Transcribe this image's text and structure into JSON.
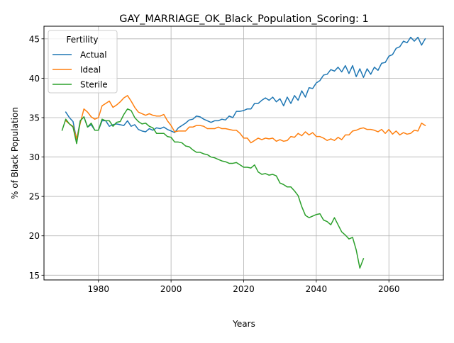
{
  "chart_data": {
    "type": "line",
    "title": "GAY_MARRIAGE_OK_Black_Population_Scoring: 1",
    "xlabel": "Years",
    "ylabel": "% of Black Population",
    "xlim": [
      1965,
      2075
    ],
    "ylim": [
      14.4,
      46.6
    ],
    "xticks": [
      1980,
      2000,
      2020,
      2040,
      2060
    ],
    "yticks": [
      15,
      20,
      25,
      30,
      35,
      40,
      45
    ],
    "grid": true,
    "legend": {
      "title": "Fertility",
      "placement": "upper-left"
    },
    "series": [
      {
        "name": "Actual",
        "color": "#1f77b4",
        "x": [
          1971,
          1972,
          1973,
          1974,
          1975,
          1976,
          1977,
          1978,
          1979,
          1980,
          1981,
          1982,
          1983,
          1984,
          1985,
          1986,
          1987,
          1988,
          1989,
          1990,
          1991,
          1992,
          1993,
          1994,
          1995,
          1996,
          1997,
          1998,
          1999,
          2000,
          2001,
          2002,
          2003,
          2004,
          2005,
          2006,
          2007,
          2008,
          2009,
          2010,
          2011,
          2012,
          2013,
          2014,
          2015,
          2016,
          2017,
          2018,
          2019,
          2020,
          2021,
          2022,
          2023,
          2024,
          2025,
          2026,
          2027,
          2028,
          2029,
          2030,
          2031,
          2032,
          2033,
          2034,
          2035,
          2036,
          2037,
          2038,
          2039,
          2040,
          2041,
          2042,
          2043,
          2044,
          2045,
          2046,
          2047,
          2048,
          2049,
          2050,
          2051,
          2052,
          2053,
          2054,
          2055,
          2056,
          2057,
          2058,
          2059,
          2060,
          2061,
          2062,
          2063,
          2064,
          2065,
          2066,
          2067,
          2068,
          2069,
          2070
        ],
        "y": [
          35.7,
          35.0,
          34.5,
          32.2,
          34.6,
          35.1,
          33.8,
          34.1,
          33.4,
          33.4,
          34.6,
          34.6,
          33.9,
          34.1,
          34.2,
          34.1,
          34.0,
          34.6,
          33.9,
          34.1,
          33.5,
          33.3,
          33.2,
          33.6,
          33.4,
          33.7,
          33.6,
          33.8,
          33.5,
          33.3,
          33.1,
          33.7,
          34.0,
          34.3,
          34.7,
          34.8,
          35.2,
          35.1,
          34.8,
          34.6,
          34.4,
          34.6,
          34.6,
          34.8,
          34.7,
          35.2,
          35.0,
          35.8,
          35.8,
          35.9,
          36.1,
          36.1,
          36.8,
          36.8,
          37.2,
          37.5,
          37.2,
          37.6,
          37.0,
          37.4,
          36.5,
          37.6,
          36.8,
          37.8,
          37.2,
          38.4,
          37.6,
          38.8,
          38.7,
          39.4,
          39.7,
          40.4,
          40.5,
          41.1,
          40.9,
          41.4,
          40.8,
          41.6,
          40.6,
          41.6,
          40.2,
          41.2,
          40.1,
          41.2,
          40.5,
          41.4,
          41.0,
          41.9,
          42.0,
          42.8,
          43.0,
          43.8,
          44.0,
          44.7,
          44.5,
          45.2,
          44.7,
          45.2,
          44.2,
          45.0
        ]
      },
      {
        "name": "Ideal",
        "color": "#ff7f0e",
        "x": [
          1971,
          1972,
          1973,
          1974,
          1975,
          1976,
          1977,
          1978,
          1979,
          1980,
          1981,
          1982,
          1983,
          1984,
          1985,
          1986,
          1987,
          1988,
          1989,
          1990,
          1991,
          1992,
          1993,
          1994,
          1995,
          1996,
          1997,
          1998,
          1999,
          2000,
          2001,
          2002,
          2003,
          2004,
          2005,
          2006,
          2007,
          2008,
          2009,
          2010,
          2011,
          2012,
          2013,
          2014,
          2015,
          2016,
          2017,
          2018,
          2019,
          2020,
          2021,
          2022,
          2023,
          2024,
          2025,
          2026,
          2027,
          2028,
          2029,
          2030,
          2031,
          2032,
          2033,
          2034,
          2035,
          2036,
          2037,
          2038,
          2039,
          2040,
          2041,
          2042,
          2043,
          2044,
          2045,
          2046,
          2047,
          2048,
          2049,
          2050,
          2051,
          2052,
          2053,
          2054,
          2055,
          2056,
          2057,
          2058,
          2059,
          2060,
          2061,
          2062,
          2063,
          2064,
          2065,
          2066,
          2067,
          2068,
          2069,
          2070
        ],
        "y": [
          34.6,
          34.2,
          33.9,
          32.3,
          34.3,
          36.1,
          35.7,
          35.1,
          34.8,
          35.0,
          36.5,
          36.8,
          37.1,
          36.3,
          36.6,
          37.0,
          37.5,
          37.8,
          37.1,
          36.3,
          35.7,
          35.5,
          35.3,
          35.5,
          35.3,
          35.2,
          35.2,
          35.4,
          34.6,
          34.0,
          33.2,
          33.3,
          33.3,
          33.3,
          33.8,
          33.8,
          34.0,
          34.0,
          33.9,
          33.6,
          33.6,
          33.6,
          33.8,
          33.6,
          33.6,
          33.5,
          33.4,
          33.4,
          33.0,
          32.4,
          32.4,
          31.8,
          32.1,
          32.4,
          32.2,
          32.4,
          32.3,
          32.4,
          32.0,
          32.2,
          32.0,
          32.1,
          32.6,
          32.5,
          33.0,
          32.7,
          33.2,
          32.8,
          33.1,
          32.6,
          32.6,
          32.4,
          32.1,
          32.3,
          32.1,
          32.5,
          32.2,
          32.8,
          32.8,
          33.3,
          33.4,
          33.6,
          33.7,
          33.5,
          33.5,
          33.4,
          33.2,
          33.5,
          33.0,
          33.5,
          32.9,
          33.3,
          32.8,
          33.1,
          32.9,
          33.0,
          33.4,
          33.3,
          34.3,
          34.0
        ]
      },
      {
        "name": "Sterile",
        "color": "#2ca02c",
        "x": [
          1970,
          1971,
          1972,
          1973,
          1974,
          1975,
          1976,
          1977,
          1978,
          1979,
          1980,
          1981,
          1982,
          1983,
          1984,
          1985,
          1986,
          1987,
          1988,
          1989,
          1990,
          1991,
          1992,
          1993,
          1994,
          1995,
          1996,
          1997,
          1998,
          1999,
          2000,
          2001,
          2002,
          2003,
          2004,
          2005,
          2006,
          2007,
          2008,
          2009,
          2010,
          2011,
          2012,
          2013,
          2014,
          2015,
          2016,
          2017,
          2018,
          2019,
          2020,
          2021,
          2022,
          2023,
          2024,
          2025,
          2026,
          2027,
          2028,
          2029,
          2030,
          2031,
          2032,
          2033,
          2034,
          2035,
          2036,
          2037,
          2038,
          2039,
          2040,
          2041,
          2042,
          2043,
          2044,
          2045,
          2046,
          2047,
          2048,
          2049,
          2050,
          2051,
          2052,
          2053
        ],
        "y": [
          33.4,
          34.8,
          34.2,
          33.8,
          31.7,
          34.6,
          35.1,
          33.8,
          34.3,
          33.4,
          33.4,
          34.8,
          34.6,
          34.6,
          33.9,
          34.4,
          34.5,
          35.4,
          36.1,
          35.9,
          35.0,
          34.5,
          34.2,
          34.3,
          33.9,
          33.7,
          33.0,
          33.0,
          33.0,
          32.6,
          32.5,
          31.9,
          31.9,
          31.8,
          31.4,
          31.3,
          30.9,
          30.6,
          30.6,
          30.4,
          30.3,
          30.0,
          29.9,
          29.7,
          29.5,
          29.4,
          29.2,
          29.2,
          29.3,
          29.0,
          28.7,
          28.7,
          28.6,
          29.0,
          28.1,
          27.8,
          27.9,
          27.7,
          27.8,
          27.6,
          26.7,
          26.5,
          26.2,
          26.2,
          25.7,
          25.1,
          23.7,
          22.6,
          22.3,
          22.5,
          22.7,
          22.8,
          22.0,
          21.8,
          21.4,
          22.3,
          21.4,
          20.5,
          20.1,
          19.6,
          19.8,
          18.2,
          15.9,
          17.1
        ]
      }
    ]
  }
}
